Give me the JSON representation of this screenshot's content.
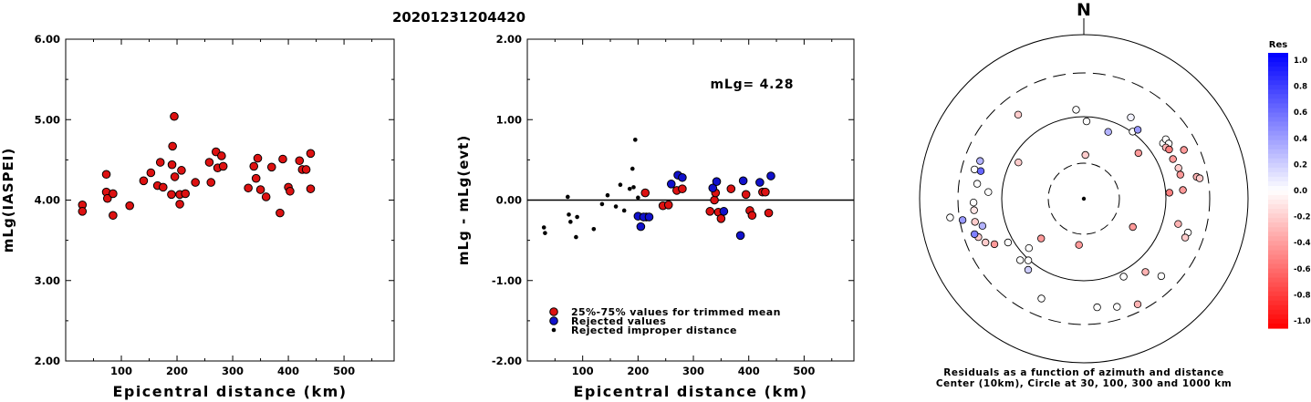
{
  "page_title": "20201231204420",
  "chart_data": [
    {
      "id": "left",
      "type": "scatter",
      "ylabel": "mLg(IASPEI)",
      "xlabel": "Epicentral distance (km)",
      "xlim": [
        0,
        590
      ],
      "ylim": [
        2.0,
        6.0
      ],
      "xticks": [
        "100",
        "200",
        "300",
        "400",
        "500"
      ],
      "yticks": [
        "2.00",
        "3.00",
        "4.00",
        "5.00",
        "6.00"
      ],
      "series": [
        {
          "color": "#dd1111",
          "points": [
            [
              30,
              3.94
            ],
            [
              30,
              3.86
            ],
            [
              73,
              4.32
            ],
            [
              73,
              4.1
            ],
            [
              75,
              4.02
            ],
            [
              85,
              4.08
            ],
            [
              85,
              3.81
            ],
            [
              115,
              3.93
            ],
            [
              140,
              4.24
            ],
            [
              153,
              4.34
            ],
            [
              165,
              4.18
            ],
            [
              170,
              4.47
            ],
            [
              175,
              4.16
            ],
            [
              190,
              4.07
            ],
            [
              191,
              4.44
            ],
            [
              192,
              4.67
            ],
            [
              195,
              5.04
            ],
            [
              196,
              4.29
            ],
            [
              205,
              4.07
            ],
            [
              205,
              3.95
            ],
            [
              208,
              4.37
            ],
            [
              215,
              4.08
            ],
            [
              233,
              4.22
            ],
            [
              258,
              4.47
            ],
            [
              261,
              4.22
            ],
            [
              270,
              4.6
            ],
            [
              273,
              4.4
            ],
            [
              280,
              4.55
            ],
            [
              283,
              4.42
            ],
            [
              328,
              4.15
            ],
            [
              338,
              4.42
            ],
            [
              342,
              4.27
            ],
            [
              345,
              4.52
            ],
            [
              350,
              4.13
            ],
            [
              360,
              4.04
            ],
            [
              370,
              4.41
            ],
            [
              385,
              3.84
            ],
            [
              390,
              4.51
            ],
            [
              400,
              4.16
            ],
            [
              403,
              4.11
            ],
            [
              420,
              4.49
            ],
            [
              425,
              4.38
            ],
            [
              432,
              4.38
            ],
            [
              440,
              4.58
            ],
            [
              440,
              4.14
            ]
          ]
        }
      ]
    },
    {
      "id": "middle",
      "type": "scatter",
      "ylabel": "mLg - mLg(evt)",
      "xlabel": "Epicentral distance (km)",
      "xlim": [
        0,
        590
      ],
      "ylim": [
        -2.0,
        2.0
      ],
      "xticks": [
        "100",
        "200",
        "300",
        "400",
        "500"
      ],
      "yticks": [
        "-2.00",
        "-1.00",
        "0.00",
        "1.00",
        "2.00"
      ],
      "annotation": "mLg= 4.28",
      "reference_line": 0,
      "legend": [
        "25%-75% values for trimmed mean",
        "Rejected values",
        "Rejected improper distance"
      ],
      "legend_position": "bottom-left",
      "series": [
        {
          "name": "25%-75% values for trimmed mean",
          "color": "#dd1111",
          "points": [
            [
              213,
              0.09
            ],
            [
              215,
              -0.21
            ],
            [
              245,
              -0.07
            ],
            [
              255,
              -0.06
            ],
            [
              270,
              0.12
            ],
            [
              280,
              0.14
            ],
            [
              330,
              -0.14
            ],
            [
              338,
              0.0
            ],
            [
              340,
              0.09
            ],
            [
              345,
              -0.15
            ],
            [
              350,
              -0.23
            ],
            [
              368,
              0.14
            ],
            [
              395,
              0.07
            ],
            [
              402,
              -0.13
            ],
            [
              406,
              -0.19
            ],
            [
              425,
              0.1
            ],
            [
              430,
              0.1
            ],
            [
              436,
              -0.16
            ]
          ]
        },
        {
          "name": "Rejected values",
          "color": "#1111cc",
          "points": [
            [
              200,
              -0.2
            ],
            [
              205,
              -0.33
            ],
            [
              210,
              -0.21
            ],
            [
              220,
              -0.21
            ],
            [
              260,
              0.2
            ],
            [
              272,
              0.31
            ],
            [
              280,
              0.28
            ],
            [
              335,
              0.15
            ],
            [
              342,
              0.23
            ],
            [
              355,
              -0.14
            ],
            [
              385,
              -0.44
            ],
            [
              390,
              0.24
            ],
            [
              420,
              0.22
            ],
            [
              440,
              0.3
            ]
          ]
        },
        {
          "name": "Rejected improper distance",
          "color": "#000000",
          "points": [
            [
              30,
              -0.34
            ],
            [
              32,
              -0.41
            ],
            [
              73,
              0.04
            ],
            [
              75,
              -0.18
            ],
            [
              78,
              -0.27
            ],
            [
              88,
              -0.46
            ],
            [
              90,
              -0.21
            ],
            [
              120,
              -0.36
            ],
            [
              135,
              -0.05
            ],
            [
              145,
              0.06
            ],
            [
              160,
              -0.08
            ],
            [
              168,
              0.19
            ],
            [
              175,
              -0.13
            ],
            [
              185,
              0.14
            ],
            [
              190,
              0.39
            ],
            [
              192,
              0.16
            ],
            [
              195,
              0.75
            ],
            [
              200,
              0.03
            ]
          ]
        }
      ]
    },
    {
      "id": "polar",
      "type": "scatter",
      "north_label": "N",
      "caption_line1": "Residuals as a function of azimuth and distance",
      "caption_line2": "Center (10km), Circle at 30, 100, 300 and 1000 km",
      "colorbar_title": "Res",
      "colorbar_ticks": [
        "1.0",
        "0.8",
        "0.6",
        "0.4",
        "0.2",
        "0.0",
        "-0.2",
        "-0.4",
        "-0.6",
        "-0.8",
        "-1.0"
      ],
      "points": [
        [
          2,
          85,
          0.0
        ],
        [
          355,
          98,
          0.0
        ],
        [
          20,
          78,
          0.3
        ],
        [
          30,
          103,
          0.05
        ],
        [
          36,
          91,
          0.0
        ],
        [
          38,
          96,
          0.4
        ],
        [
          55,
          106,
          0.0
        ],
        [
          54,
          111,
          0.0
        ],
        [
          57,
          111,
          0.0
        ],
        [
          58,
          106,
          -0.3
        ],
        [
          60,
          108,
          -0.5
        ],
        [
          66,
          107,
          -0.4
        ],
        [
          72,
          109,
          -0.2
        ],
        [
          76,
          109,
          -0.4
        ],
        [
          105,
          107,
          -0.3
        ],
        [
          85,
          109,
          -0.4
        ],
        [
          79,
          126,
          -0.3
        ],
        [
          80,
          129,
          -0.2
        ],
        [
          108,
          120,
          0.0
        ],
        [
          111,
          119,
          -0.2
        ],
        [
          135,
          120,
          0.0
        ],
        [
          140,
          105,
          -0.3
        ],
        [
          153,
          96,
          0.0
        ],
        [
          163,
          124,
          0.0
        ],
        [
          173,
          120,
          0.0
        ],
        [
          203,
          119,
          0.0
        ],
        [
          218,
          99,
          0.2
        ],
        [
          222,
          91,
          0.0
        ],
        [
          226,
          97,
          0.0
        ],
        [
          228,
          81,
          0.0
        ],
        [
          240,
          96,
          0.0
        ],
        [
          243,
          110,
          -0.4
        ],
        [
          246,
          118,
          -0.2
        ],
        [
          250,
          123,
          -0.2
        ],
        [
          255,
          115,
          0.3
        ],
        [
          258,
          122,
          -0.2
        ],
        [
          260,
          135,
          0.4
        ],
        [
          262,
          148,
          0.0
        ],
        [
          264,
          121,
          -0.1
        ],
        [
          268,
          121,
          0.0
        ],
        [
          274,
          105,
          0.0
        ],
        [
          278,
          118,
          0.0
        ],
        [
          285,
          124,
          0.0
        ],
        [
          290,
          121,
          0.3
        ],
        [
          299,
          82,
          -0.2
        ],
        [
          322,
          117,
          -0.2
        ],
        [
          2,
          48,
          -0.2
        ],
        [
          186,
          51,
          -0.4
        ],
        [
          227,
          64,
          -0.4
        ],
        [
          86,
          94,
          -0.5
        ],
        [
          120,
          62,
          -0.4
        ],
        [
          153,
          130,
          -0.3
        ],
        [
          285,
          117,
          0.6
        ],
        [
          252,
          126,
          0.5
        ],
        [
          50,
          78,
          -0.4
        ],
        [
          64,
          122,
          -0.4
        ]
      ]
    }
  ]
}
